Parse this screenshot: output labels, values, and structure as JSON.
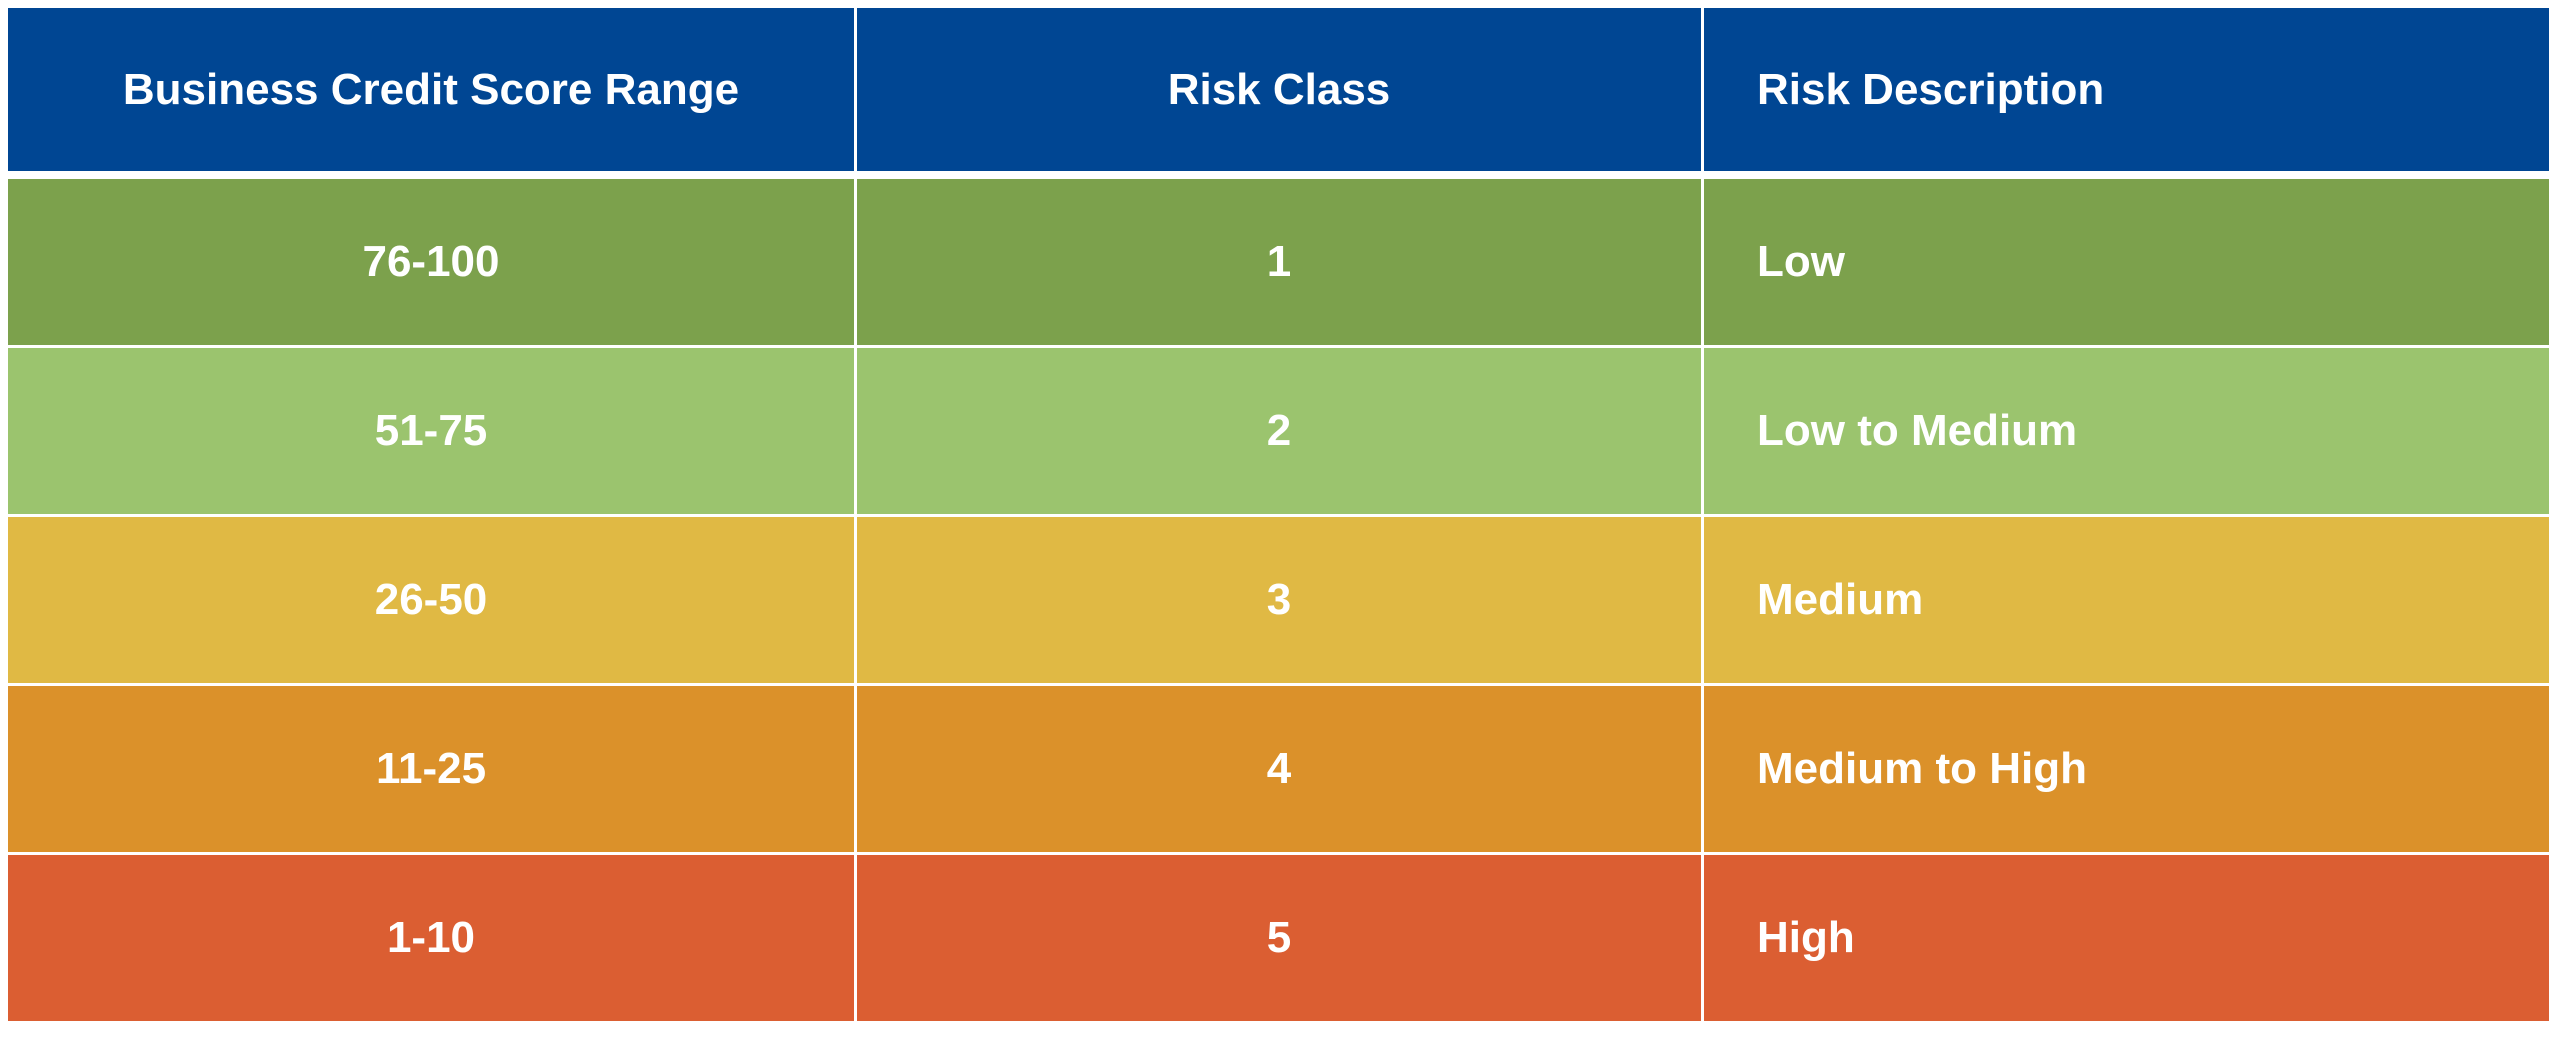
{
  "table": {
    "header": [
      "Business Credit Score Range",
      "Risk Class",
      "Risk Description"
    ],
    "rows": [
      [
        "76-100",
        "1",
        "Low"
      ],
      [
        "51-75",
        "2",
        "Low to Medium"
      ],
      [
        "26-50",
        "3",
        "Medium"
      ],
      [
        "11-25",
        "4",
        "Medium to High"
      ],
      [
        "1-10",
        "5",
        "High"
      ]
    ]
  }
}
